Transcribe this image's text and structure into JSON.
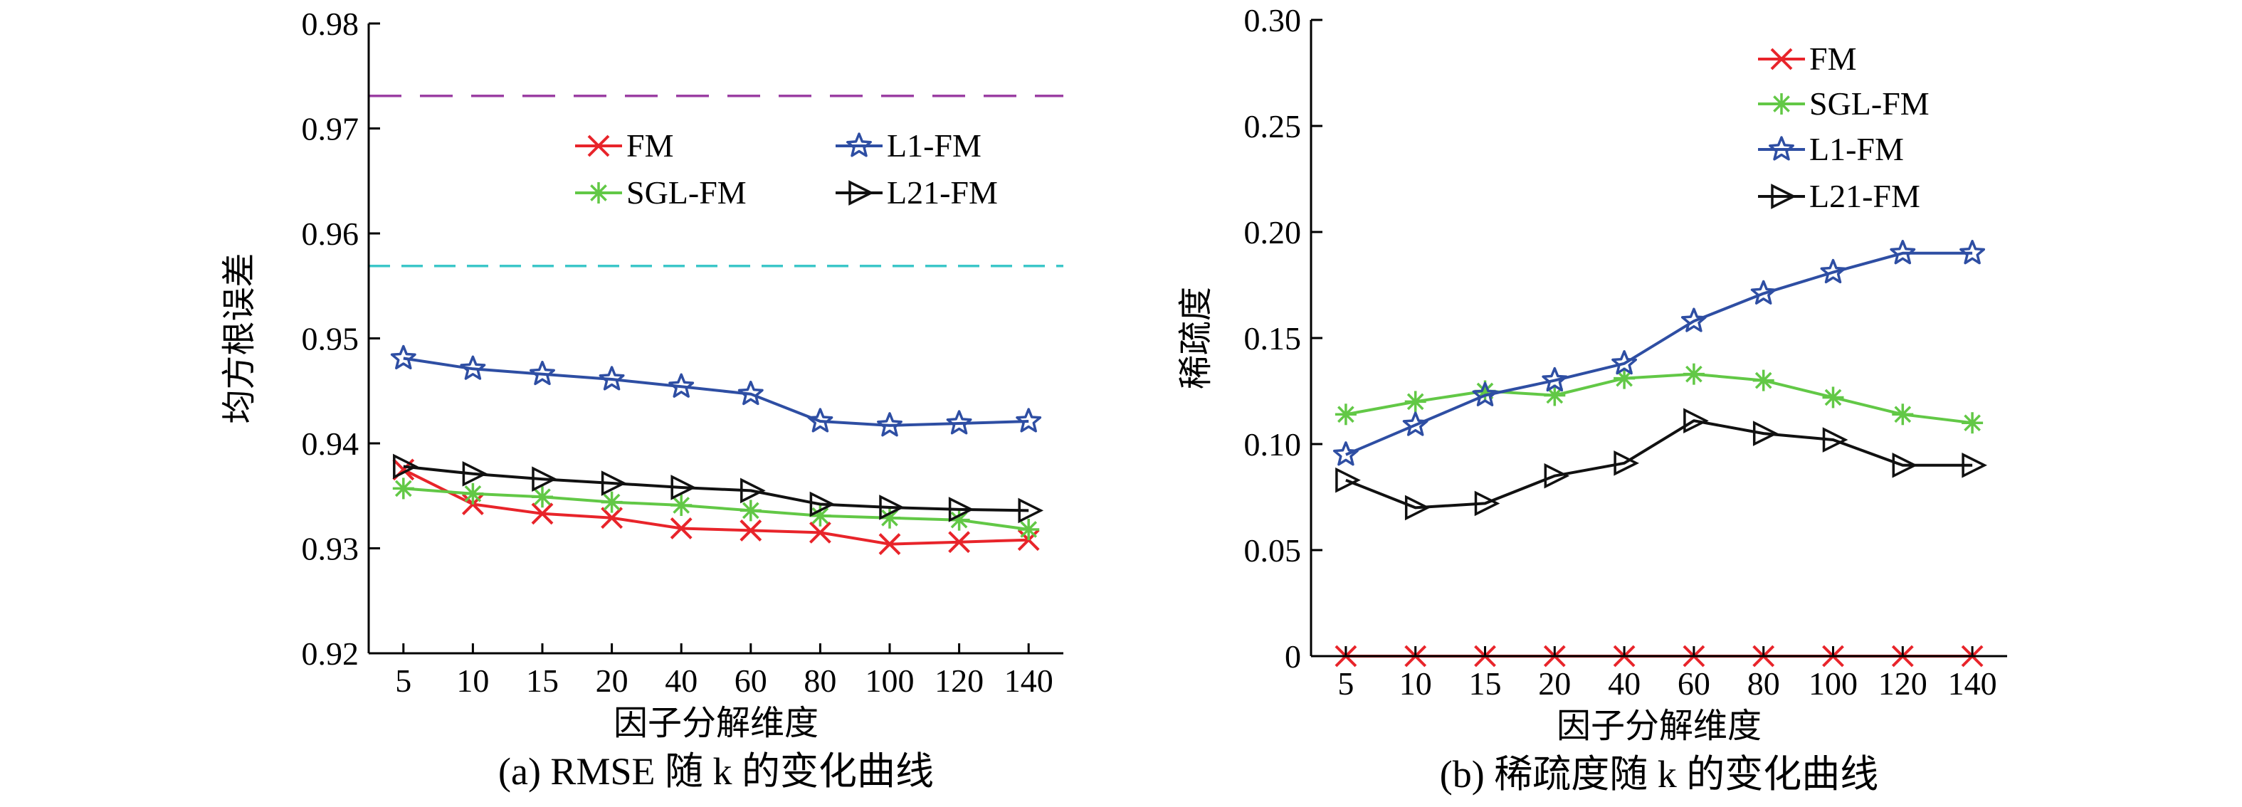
{
  "chart_data": [
    {
      "type": "line",
      "caption": "(a) RMSE 随 k 的变化曲线",
      "xlabel": "因子分解维度",
      "ylabel": "均方根误差",
      "categories": [
        "5",
        "10",
        "15",
        "20",
        "40",
        "60",
        "80",
        "100",
        "120",
        "140"
      ],
      "ylim": [
        0.92,
        0.98
      ],
      "yticks": [
        "0.92",
        "0.93",
        "0.94",
        "0.95",
        "0.96",
        "0.97",
        "0.98"
      ],
      "yticks_values": [
        0.92,
        0.93,
        0.94,
        0.95,
        0.96,
        0.97,
        0.98
      ],
      "series": [
        {
          "name": "FM",
          "color": "#e8242a",
          "marker": "x",
          "values": [
            0.9375,
            0.9342,
            0.9333,
            0.9329,
            0.9319,
            0.9317,
            0.9315,
            0.9304,
            0.9306,
            0.9308
          ]
        },
        {
          "name": "SGL-FM",
          "color": "#62c846",
          "marker": "asterisk",
          "values": [
            0.9357,
            0.9352,
            0.9349,
            0.9344,
            0.9341,
            0.9336,
            0.9331,
            0.9329,
            0.9327,
            0.9318
          ]
        },
        {
          "name": "L1-FM",
          "color": "#2e4ea3",
          "marker": "star",
          "values": [
            0.9481,
            0.9471,
            0.9466,
            0.9461,
            0.9454,
            0.9447,
            0.9421,
            0.9417,
            0.9419,
            0.9421
          ]
        },
        {
          "name": "L21-FM",
          "color": "#111111",
          "marker": "triangle-right",
          "values": [
            0.9378,
            0.9371,
            0.9366,
            0.9362,
            0.9358,
            0.9355,
            0.9342,
            0.9339,
            0.9337,
            0.9336
          ]
        }
      ],
      "reference_lines": [
        {
          "value": 0.9731,
          "color": "#9b3fa3"
        },
        {
          "value": 0.9569,
          "color": "#3cc7c9"
        }
      ],
      "legend_placement": "top-center, two columns",
      "legend_order": [
        0,
        2,
        1,
        3
      ]
    },
    {
      "type": "line",
      "caption": "(b) 稀疏度随 k 的变化曲线",
      "xlabel": "因子分解维度",
      "ylabel": "稀疏度",
      "categories": [
        "5",
        "10",
        "15",
        "20",
        "40",
        "60",
        "80",
        "100",
        "120",
        "140"
      ],
      "ylim": [
        0,
        0.3
      ],
      "yticks": [
        "0",
        "0.05",
        "0.10",
        "0.15",
        "0.20",
        "0.25",
        "0.30"
      ],
      "yticks_values": [
        0,
        0.05,
        0.1,
        0.15,
        0.2,
        0.25,
        0.3
      ],
      "series": [
        {
          "name": "FM",
          "color": "#e8242a",
          "marker": "x",
          "values": [
            0,
            0,
            0,
            0,
            0,
            0,
            0,
            0,
            0,
            0
          ]
        },
        {
          "name": "SGL-FM",
          "color": "#62c846",
          "marker": "asterisk",
          "values": [
            0.114,
            0.12,
            0.125,
            0.123,
            0.131,
            0.133,
            0.13,
            0.122,
            0.114,
            0.11
          ]
        },
        {
          "name": "L1-FM",
          "color": "#2e4ea3",
          "marker": "star",
          "values": [
            0.095,
            0.109,
            0.123,
            0.13,
            0.138,
            0.158,
            0.171,
            0.181,
            0.19,
            0.19
          ]
        },
        {
          "name": "L21-FM",
          "color": "#111111",
          "marker": "triangle-right",
          "values": [
            0.083,
            0.07,
            0.072,
            0.085,
            0.091,
            0.111,
            0.105,
            0.102,
            0.09,
            0.09
          ]
        }
      ],
      "legend_placement": "top-right, single column",
      "legend_order": [
        0,
        1,
        2,
        3
      ]
    }
  ]
}
